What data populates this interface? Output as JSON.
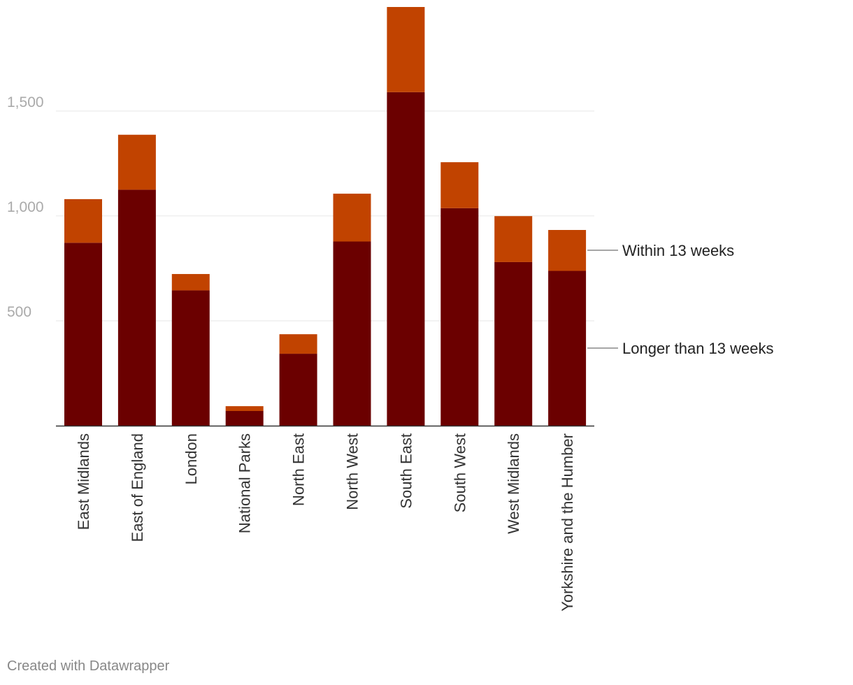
{
  "chart_data": {
    "type": "bar",
    "stacked": true,
    "categories": [
      "East Midlands",
      "East of England",
      "London",
      "National Parks",
      "North East",
      "North West",
      "South East",
      "South West",
      "West Midlands",
      "Yorkshire and the Humber"
    ],
    "series": [
      {
        "name": "Longer than 13 weeks",
        "color": "#6b0000",
        "values": [
          872,
          1125,
          645,
          70,
          343,
          878,
          1590,
          1037,
          780,
          738
        ]
      },
      {
        "name": "Within 13 weeks",
        "color": "#c14300",
        "values": [
          208,
          262,
          78,
          23,
          93,
          228,
          406,
          219,
          219,
          195
        ]
      }
    ],
    "ylim": [
      0,
      1996
    ],
    "yticks": [
      500,
      1000,
      1500
    ],
    "ytick_labels": [
      "500",
      "1,000",
      "1,500"
    ],
    "grid": true,
    "legend": "right, direct labels",
    "title": "",
    "xlabel": "",
    "ylabel": ""
  },
  "footer": {
    "credit": "Created with Datawrapper"
  }
}
